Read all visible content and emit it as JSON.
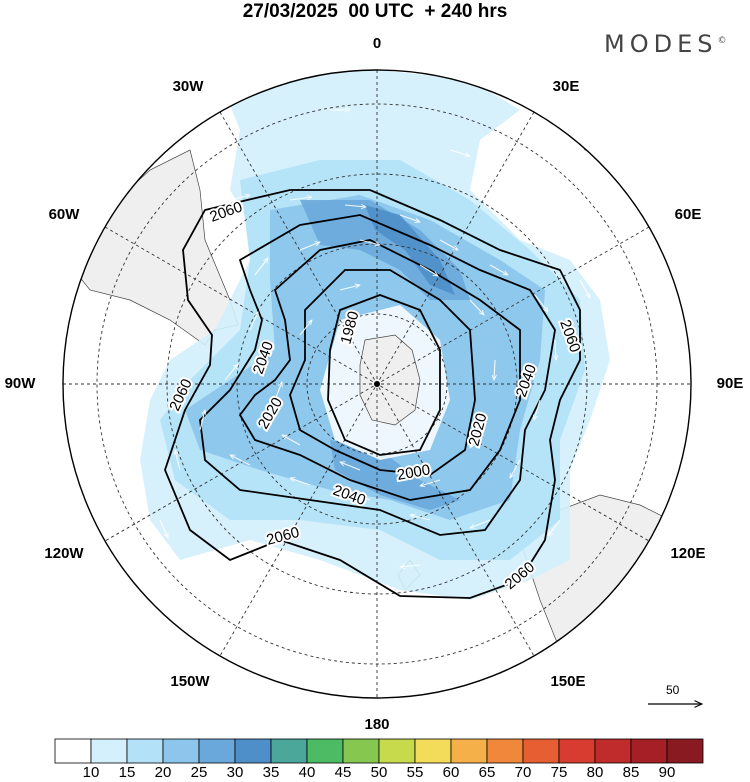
{
  "header": {
    "title": "27/03/2025  00 UTC  + 240 hrs",
    "brand": "MODES",
    "brand_mark": "©"
  },
  "map": {
    "projection": "south-polar-stereographic",
    "longitude_labels": {
      "top": "0",
      "top_left": "30W",
      "top_right": "30E",
      "upper_left": "60W",
      "upper_right": "60E",
      "left": "90W",
      "right": "90E",
      "lower_left": "120W",
      "lower_right": "120E",
      "bottom_left": "150W",
      "bottom_right": "150E",
      "bottom": "180"
    },
    "contour_labels": [
      "2060",
      "2060",
      "2060",
      "2060",
      "2060",
      "2040",
      "2040",
      "2040",
      "2020",
      "2020",
      "2000",
      "1980"
    ],
    "contour_levels": [
      1980,
      2000,
      2020,
      2040,
      2060
    ],
    "wind_vectors": "white arrows",
    "grid": true
  },
  "wind_reference": {
    "label": "50"
  },
  "colorbar": {
    "ticks": [
      "10",
      "15",
      "20",
      "25",
      "30",
      "35",
      "40",
      "45",
      "50",
      "55",
      "60",
      "65",
      "70",
      "75",
      "80",
      "85",
      "90"
    ],
    "colors": [
      "#ffffff",
      "#d3f0fc",
      "#b3e2f8",
      "#8dc6ec",
      "#6aa8dc",
      "#4f8fc9",
      "#4aa79a",
      "#4dbb63",
      "#86c84f",
      "#c6da4c",
      "#f3dc59",
      "#f5b04a",
      "#f0873a",
      "#e65e32",
      "#d83b30",
      "#c02b2c",
      "#a51f27",
      "#8a1a22"
    ]
  }
}
